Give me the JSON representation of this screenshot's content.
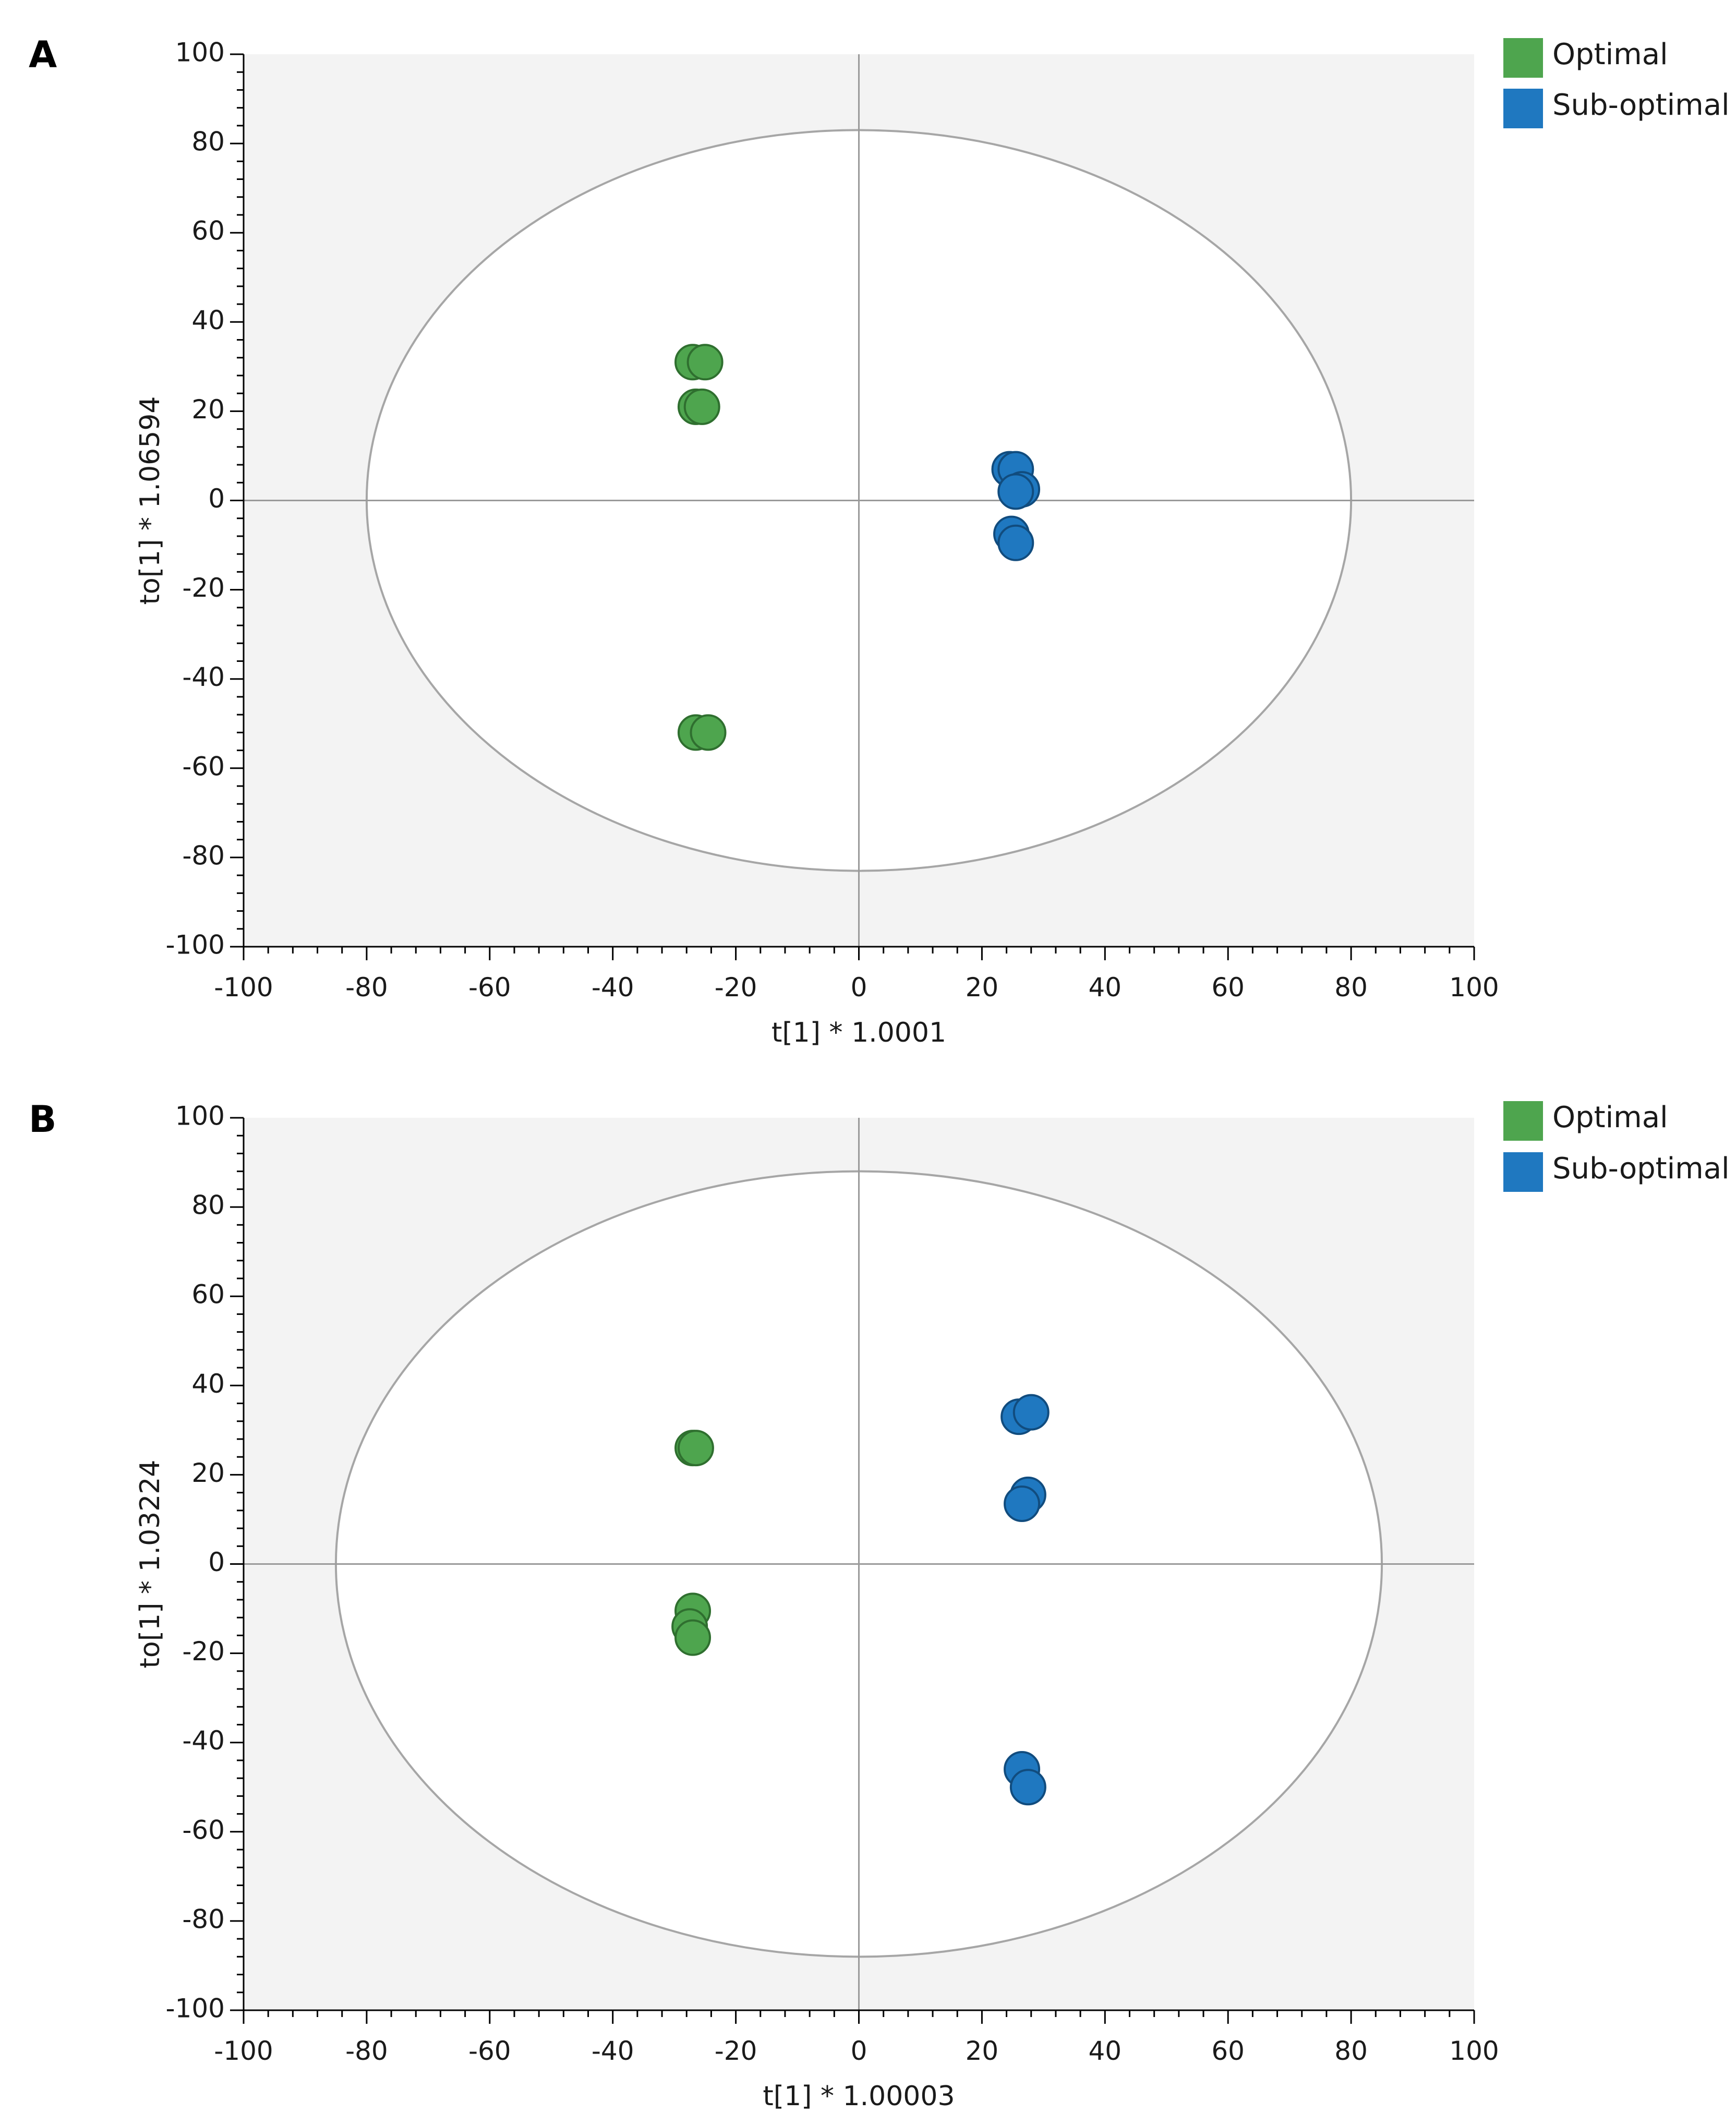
{
  "colors": {
    "optimal": "#4ea54e",
    "optimal_stroke": "#2f6f2f",
    "suboptimal": "#1f78c0",
    "suboptimal_stroke": "#114c7e",
    "plot_background": "#f3f3f3",
    "ellipse_fill": "#ffffff",
    "ellipse_stroke": "#a6a6a6",
    "axis_line": "#9a9a9a"
  },
  "legend": {
    "optimal_label": "Optimal",
    "suboptimal_label": "Sub-optimal"
  },
  "chart_data": [
    {
      "panel_label": "A",
      "type": "scatter",
      "title": "",
      "xlabel": "t[1] * 1.0001",
      "ylabel": "to[1] * 1.06594",
      "xlim": [
        -100,
        100
      ],
      "ylim": [
        -100,
        100
      ],
      "xticks": [
        -100,
        -80,
        -60,
        -40,
        -20,
        0,
        20,
        40,
        60,
        80,
        100
      ],
      "yticks": [
        -100,
        -80,
        -60,
        -40,
        -20,
        0,
        20,
        40,
        60,
        80,
        100
      ],
      "legend": [
        "Optimal",
        "Sub-optimal"
      ],
      "legend_position": "top-right, outside plot",
      "ellipse": {
        "rx": 80,
        "ry": 83
      },
      "series": [
        {
          "name": "Optimal",
          "points": [
            [
              -27,
              31
            ],
            [
              -25,
              31
            ],
            [
              -26.5,
              21
            ],
            [
              -25.5,
              21
            ],
            [
              -26.5,
              -52
            ],
            [
              -24.5,
              -52
            ]
          ]
        },
        {
          "name": "Sub-optimal",
          "points": [
            [
              24.5,
              7
            ],
            [
              25.5,
              7
            ],
            [
              26.5,
              2.5
            ],
            [
              25.5,
              2
            ],
            [
              24.8,
              -7.5
            ],
            [
              25.5,
              -9.5
            ]
          ]
        }
      ]
    },
    {
      "panel_label": "B",
      "type": "scatter",
      "title": "",
      "xlabel": "t[1] * 1.00003",
      "ylabel": "to[1] * 1.03224",
      "xlim": [
        -100,
        100
      ],
      "ylim": [
        -100,
        100
      ],
      "xticks": [
        -100,
        -80,
        -60,
        -40,
        -20,
        0,
        20,
        40,
        60,
        80,
        100
      ],
      "yticks": [
        -100,
        -80,
        -60,
        -40,
        -20,
        0,
        20,
        40,
        60,
        80,
        100
      ],
      "legend": [
        "Optimal",
        "Sub-optimal"
      ],
      "legend_position": "top-right, outside plot",
      "ellipse": {
        "rx": 85,
        "ry": 88
      },
      "series": [
        {
          "name": "Optimal",
          "points": [
            [
              -27,
              26
            ],
            [
              -26.5,
              26
            ],
            [
              -27,
              -10.5
            ],
            [
              -27.5,
              -14
            ],
            [
              -27,
              -16.5
            ]
          ]
        },
        {
          "name": "Sub-optimal",
          "points": [
            [
              26,
              33
            ],
            [
              28,
              34
            ],
            [
              27.5,
              15.5
            ],
            [
              26.5,
              13.5
            ],
            [
              26.5,
              -46
            ],
            [
              27.5,
              -50
            ]
          ]
        }
      ]
    }
  ]
}
